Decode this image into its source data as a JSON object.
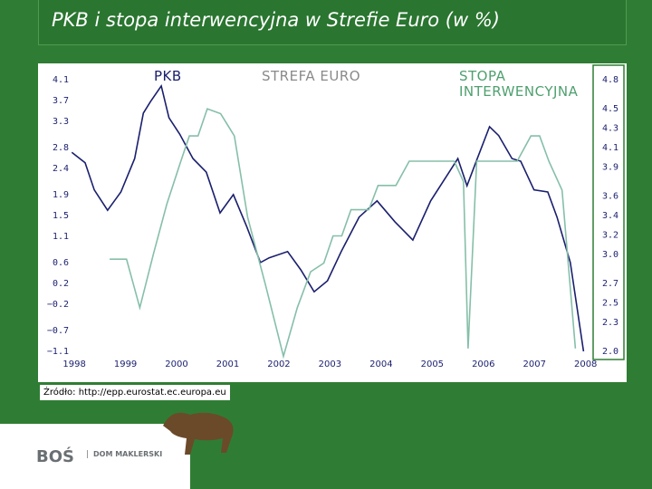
{
  "chart_data": {
    "type": "line",
    "title": "PKB i stopa interwencyjna w Strefie Euro (w %)",
    "subtitle": "STREFA EURO",
    "xlim": [
      1997.75,
      2008.2
    ],
    "xticks": [
      1998,
      1999,
      2000,
      2001,
      2002,
      2003,
      2004,
      2005,
      2006,
      2007,
      2008
    ],
    "ylim": [
      -1.1,
      4.1
    ],
    "yticks": [
      4.1,
      3.7,
      3.3,
      2.8,
      2.4,
      1.9,
      1.5,
      1.1,
      0.6,
      0.2,
      {
        "value": -0.2,
        "label": "−0.2"
      },
      {
        "value": -0.7,
        "label": "−0.7"
      },
      {
        "value": -1.1,
        "label": "−1.1"
      }
    ],
    "y2lim": [
      2.0,
      4.8
    ],
    "y2ticks": [
      4.8,
      4.5,
      4.3,
      4.1,
      3.9,
      3.6,
      3.4,
      3.2,
      {
        "value": 3.0,
        "label": "3.0"
      },
      2.7,
      2.5,
      2.3,
      {
        "value": 2.0,
        "label": "2.0"
      }
    ],
    "grid": false,
    "series": [
      {
        "name": "PKB",
        "color": "#1a1f6e",
        "x": [
          1997.95,
          1998.21,
          1998.39,
          1998.65,
          1998.91,
          1999.18,
          1999.35,
          1999.49,
          1999.7,
          1999.85,
          2000.06,
          2000.32,
          2000.58,
          2000.85,
          2001.11,
          2001.37,
          2001.64,
          2001.81,
          2002.17,
          2002.43,
          2002.69,
          2002.95,
          2003.22,
          2003.57,
          2003.92,
          2004.27,
          2004.62,
          2004.97,
          2005.33,
          2005.5,
          2005.68,
          2005.85,
          2006.12,
          2006.3,
          2006.56,
          2006.73,
          2006.99,
          2007.26,
          2007.44,
          2007.7,
          2007.96
        ],
        "values": [
          2.71,
          2.51,
          1.99,
          1.6,
          1.95,
          2.59,
          3.46,
          3.68,
          3.98,
          3.37,
          3.06,
          2.59,
          2.33,
          1.55,
          1.9,
          1.29,
          0.6,
          0.69,
          0.81,
          0.46,
          0.04,
          0.25,
          0.81,
          1.47,
          1.78,
          1.38,
          1.03,
          1.78,
          2.33,
          2.59,
          2.07,
          2.51,
          3.2,
          3.03,
          2.59,
          2.54,
          1.99,
          1.95,
          1.47,
          0.6,
          -1.1
        ]
      },
      {
        "name": "STOPA INTERWENCYJNA",
        "color": "#86bfa9",
        "axis": "y2",
        "x": [
          1998.69,
          1999.02,
          1999.28,
          1999.55,
          1999.81,
          2000.07,
          2000.25,
          2000.42,
          2000.6,
          2000.86,
          2001.13,
          2001.39,
          2001.74,
          2002.09,
          2002.36,
          2002.62,
          2002.88,
          2003.06,
          2003.23,
          2003.41,
          2003.76,
          2003.94,
          2004.29,
          2004.55,
          2005.43,
          2005.61,
          2005.7,
          2005.87,
          2006.66,
          2006.93,
          2007.1,
          2007.28,
          2007.54,
          2007.8
        ],
        "values": [
          2.95,
          2.95,
          2.45,
          3.01,
          3.52,
          3.94,
          4.22,
          4.22,
          4.5,
          4.45,
          4.22,
          3.38,
          2.68,
          1.95,
          2.45,
          2.82,
          2.91,
          3.19,
          3.19,
          3.46,
          3.46,
          3.71,
          3.71,
          3.96,
          3.96,
          3.75,
          2.03,
          3.96,
          3.96,
          4.22,
          4.22,
          3.96,
          3.66,
          2.03
        ]
      }
    ]
  },
  "footer": {
    "source": "Źródło: http://epp.eurostat.ec.europa.eu",
    "brand": "BOŚ",
    "brand_sub": "DOM MAKLERSKI"
  }
}
